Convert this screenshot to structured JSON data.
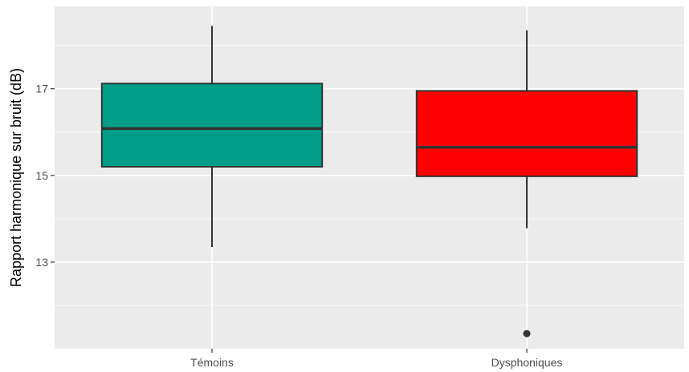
{
  "chart_data": {
    "type": "boxplot",
    "title": "",
    "xlabel": "",
    "ylabel": "Rapport harmonique sur bruit (dB)",
    "categories": [
      "Témoins",
      "Dysphoniques"
    ],
    "ylim": [
      11.0,
      18.9
    ],
    "yticks": [
      13,
      15,
      17
    ],
    "grid": true,
    "panel_background": "#EBEBEB",
    "grid_color": "#FFFFFF",
    "box_outline_color": "#333333",
    "boxes": [
      {
        "category": "Témoins",
        "fill": "#009E88",
        "whisker_low": 13.35,
        "q1": 15.2,
        "median": 16.08,
        "q3": 17.12,
        "whisker_high": 18.45,
        "outliers": []
      },
      {
        "category": "Dysphoniques",
        "fill": "#FF0000",
        "whisker_low": 13.78,
        "q1": 14.98,
        "median": 15.65,
        "q3": 16.95,
        "whisker_high": 18.35,
        "outliers": [
          11.35
        ]
      }
    ]
  }
}
